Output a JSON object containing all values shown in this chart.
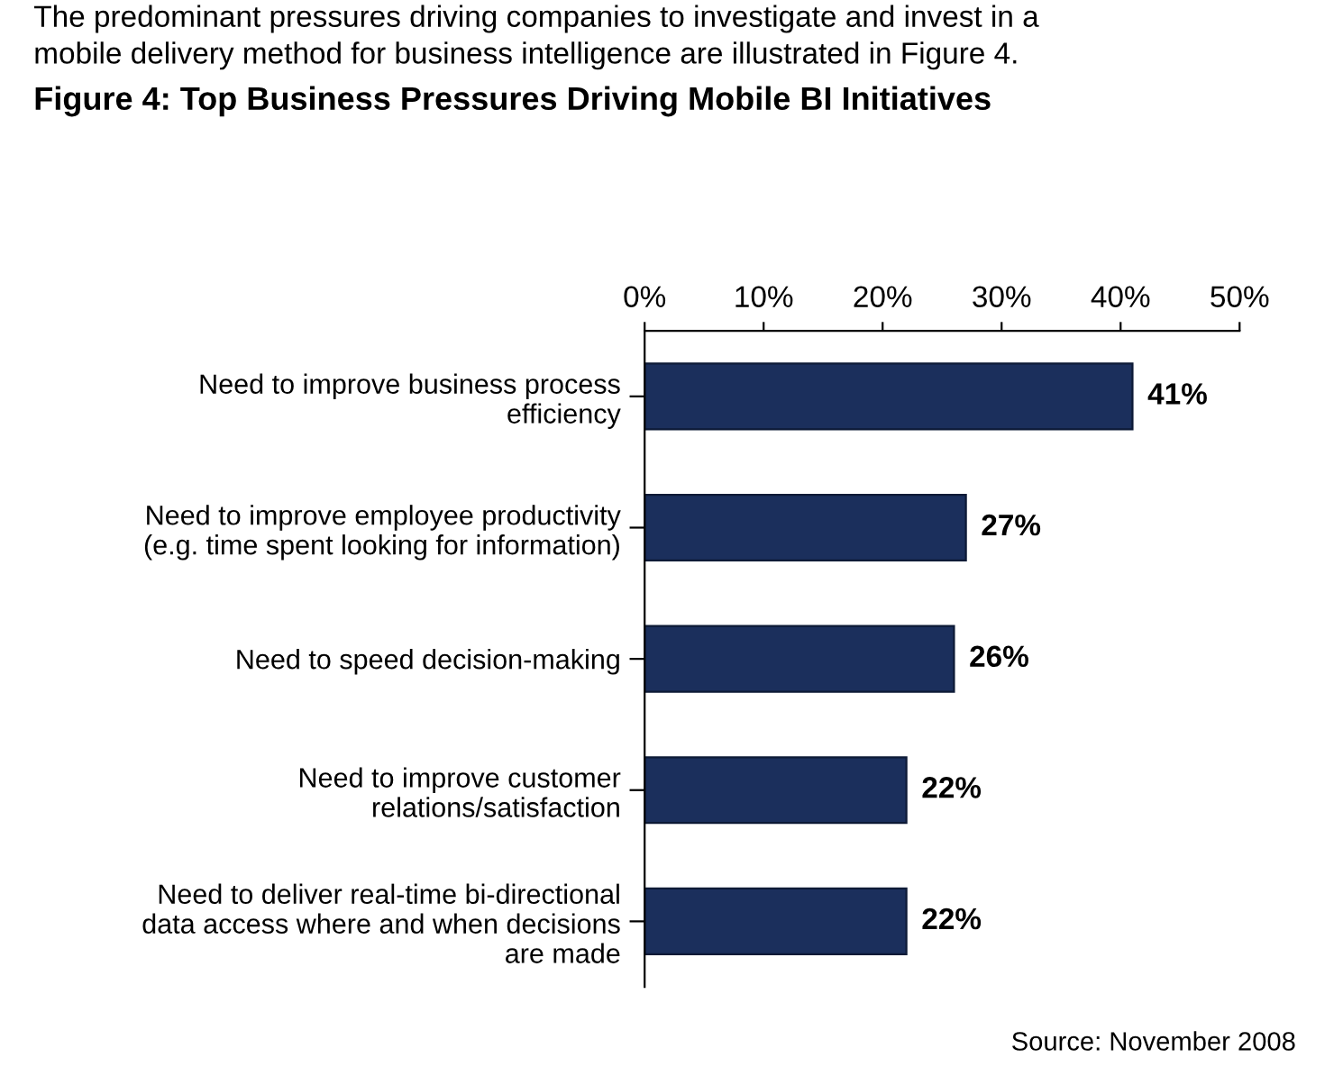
{
  "chart_data": {
    "type": "bar",
    "orientation": "horizontal",
    "title": "Figure 4: Top Business Pressures Driving Mobile BI Initiatives",
    "annotations": [
      "The predominant pressures driving companies to investigate and invest in a\nmobile delivery method for business intelligence are illustrated in Figure 4.",
      "Source: November 2008"
    ],
    "categories": [
      "Need to improve business process\nefficiency",
      "Need to improve employee productivity\n(e.g. time spent looking for information)",
      "Need to speed decision-making",
      "Need to improve customer\nrelations/satisfaction",
      "Need to deliver real-time bi-directional\ndata access where and when decisions\nare made"
    ],
    "values": [
      41,
      27,
      26,
      22,
      22
    ],
    "value_labels": [
      "41%",
      "27%",
      "26%",
      "22%",
      "22%"
    ],
    "color": "#1b2f5c",
    "xlim": [
      0,
      50
    ],
    "xticks": [
      {
        "value": 0,
        "label": "0%"
      },
      {
        "value": 10,
        "label": "10%"
      },
      {
        "value": 20,
        "label": "20%"
      },
      {
        "value": 30,
        "label": "30%"
      },
      {
        "value": 40,
        "label": "40%"
      },
      {
        "value": 50,
        "label": "50%"
      }
    ],
    "grid": false,
    "legend": false
  }
}
